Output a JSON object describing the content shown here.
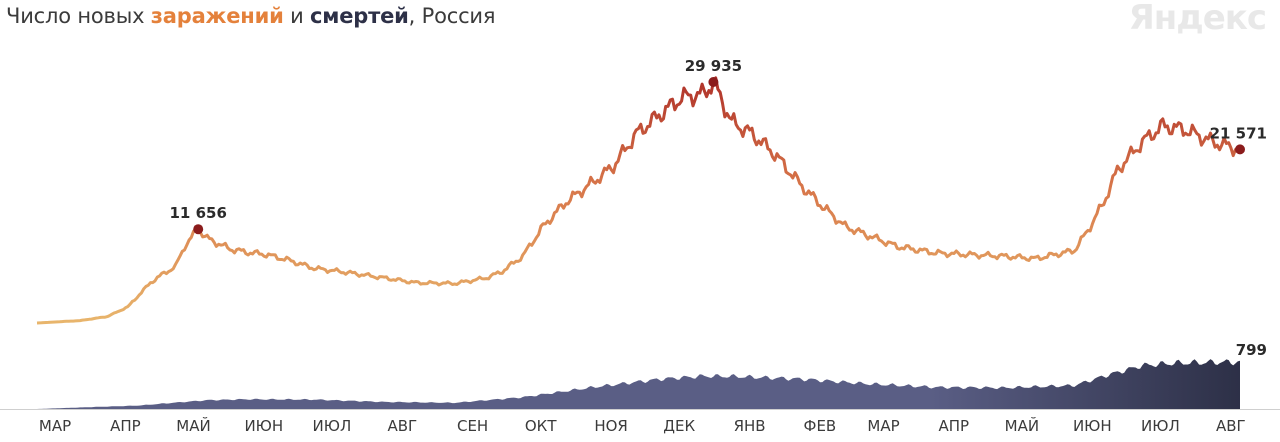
{
  "title": {
    "prefix": "Число новых ",
    "infections": "заражений",
    "middle": " и ",
    "deaths": "смертей",
    "suffix": ", Россия"
  },
  "logo": "Яндекс",
  "colors": {
    "infections_low": "#e8b56c",
    "infections_high": "#b0332a",
    "deaths_area": "#5a5e85",
    "deaths_area_dark": "#2d3047",
    "peak_dot": "#8b1c1c",
    "axis": "#cfcfcf"
  },
  "chart_data": {
    "type": "line",
    "title": "Число новых заражений и смертей, Россия",
    "x_tick_labels": [
      "МАР",
      "АПР",
      "МАЙ",
      "ИЮН",
      "ИЮЛ",
      "АВГ",
      "СЕН",
      "ОКТ",
      "НОЯ",
      "ДЕК",
      "ЯНВ",
      "ФЕВ",
      "МАР",
      "АПР",
      "МАЙ",
      "ИЮН",
      "ИЮЛ",
      "АВГ"
    ],
    "x_tick_dates": [
      "2020-03-01",
      "2020-04-01",
      "2020-05-01",
      "2020-06-01",
      "2020-07-01",
      "2020-08-01",
      "2020-09-01",
      "2020-10-01",
      "2020-11-01",
      "2020-12-01",
      "2021-01-01",
      "2021-02-01",
      "2021-03-01",
      "2021-04-01",
      "2021-05-01",
      "2021-06-01",
      "2021-07-01",
      "2021-08-01"
    ],
    "x_range": [
      "2020-03-01",
      "2021-08-13"
    ],
    "grid": false,
    "legend": "title",
    "series": [
      {
        "name": "заражений",
        "style": "line",
        "x": [
          "2020-03-01",
          "2020-03-20",
          "2020-04-01",
          "2020-04-10",
          "2020-04-20",
          "2020-04-25",
          "2020-05-01",
          "2020-05-05",
          "2020-05-11",
          "2020-05-15",
          "2020-05-25",
          "2020-06-01",
          "2020-06-10",
          "2020-06-20",
          "2020-07-01",
          "2020-07-15",
          "2020-08-01",
          "2020-08-15",
          "2020-09-01",
          "2020-09-15",
          "2020-09-22",
          "2020-10-01",
          "2020-10-10",
          "2020-10-20",
          "2020-11-01",
          "2020-11-10",
          "2020-11-20",
          "2020-12-01",
          "2020-12-10",
          "2020-12-20",
          "2020-12-24",
          "2021-01-01",
          "2021-01-10",
          "2021-01-20",
          "2021-02-01",
          "2021-02-10",
          "2021-02-20",
          "2021-03-01",
          "2021-03-15",
          "2021-04-01",
          "2021-04-15",
          "2021-05-01",
          "2021-05-15",
          "2021-06-01",
          "2021-06-07",
          "2021-06-14",
          "2021-06-20",
          "2021-07-01",
          "2021-07-10",
          "2021-07-20",
          "2021-08-01",
          "2021-08-13"
        ],
        "values": [
          0,
          300,
          800,
          2000,
          5000,
          6000,
          7000,
          9500,
          11656,
          10500,
          9200,
          8800,
          8500,
          7800,
          6800,
          6300,
          5600,
          5000,
          4900,
          5600,
          6400,
          8300,
          12000,
          15000,
          17500,
          19500,
          23500,
          26000,
          28000,
          28500,
          29935,
          25000,
          23500,
          21000,
          17000,
          14500,
          12000,
          11000,
          9500,
          8700,
          8500,
          8300,
          8000,
          9000,
          11500,
          15000,
          19000,
          22500,
          24500,
          24000,
          22500,
          21571
        ]
      },
      {
        "name": "смертей",
        "style": "area",
        "x": [
          "2020-03-01",
          "2020-04-15",
          "2020-05-15",
          "2020-06-01",
          "2020-07-01",
          "2020-08-01",
          "2020-09-01",
          "2020-10-01",
          "2020-11-01",
          "2020-12-01",
          "2020-12-20",
          "2021-01-01",
          "2021-02-01",
          "2021-03-01",
          "2021-04-01",
          "2021-05-01",
          "2021-06-01",
          "2021-06-15",
          "2021-07-01",
          "2021-07-15",
          "2021-08-01",
          "2021-08-13"
        ],
        "values": [
          0,
          60,
          150,
          165,
          160,
          120,
          105,
          200,
          370,
          510,
          560,
          555,
          510,
          430,
          370,
          360,
          400,
          570,
          740,
          780,
          795,
          799
        ]
      }
    ],
    "annotations": [
      {
        "series": "заражений",
        "x": "2020-05-11",
        "value": 11656,
        "label": "11 656"
      },
      {
        "series": "заражений",
        "x": "2020-12-24",
        "value": 29935,
        "label": "29 935"
      },
      {
        "series": "заражений",
        "x": "2021-08-13",
        "value": 21571,
        "label": "21 571"
      },
      {
        "series": "смертей",
        "x": "2021-08-13",
        "value": 799,
        "label": "799"
      }
    ]
  }
}
